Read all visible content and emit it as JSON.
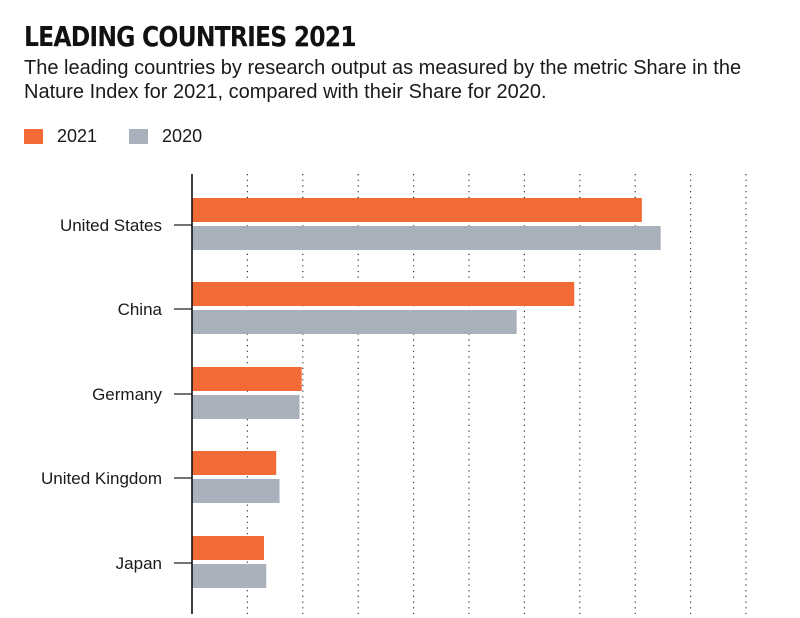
{
  "title": "LEADING COUNTRIES 2021",
  "subtitle": "The leading countries by research output as measured by the metric Share in the Nature Index for 2021, compared with their Share for 2020.",
  "legend": [
    {
      "label": "2021",
      "color": "#f26a36"
    },
    {
      "label": "2020",
      "color": "#a9b1bc"
    }
  ],
  "chart_data": {
    "type": "bar",
    "orientation": "horizontal",
    "categories": [
      "United States",
      "China",
      "Germany",
      "United Kingdom",
      "Japan"
    ],
    "series": [
      {
        "name": "2021",
        "color": "#f26a36",
        "values": [
          20300,
          17250,
          4950,
          3800,
          3250
        ]
      },
      {
        "name": "2020",
        "color": "#a9b1bc",
        "values": [
          21150,
          14650,
          4850,
          3950,
          3350
        ]
      }
    ],
    "xlim": [
      0,
      25000
    ],
    "grid": true,
    "axis_tick_labels": false,
    "legend_position": "top-left"
  }
}
